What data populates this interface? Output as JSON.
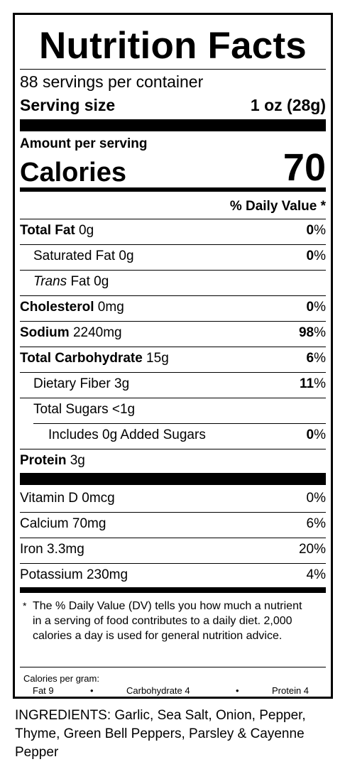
{
  "title": "Nutrition Facts",
  "servings_per_container": "88 servings per container",
  "serving_size": {
    "label": "Serving size",
    "value": "1 oz (28g)"
  },
  "amount_per_serving": "Amount per serving",
  "calories": {
    "label": "Calories",
    "value": "70"
  },
  "dv_header": "% Daily Value *",
  "nutrients": [
    {
      "bold": "Total Fat",
      "amount": " 0g",
      "pct": "0",
      "pct_unit": "%"
    },
    {
      "plain": "Saturated Fat 0g",
      "pct": "0",
      "pct_unit": "%"
    },
    {
      "italic": "Trans",
      "amount": " Fat 0g",
      "pct": "",
      "pct_unit": ""
    },
    {
      "bold": "Cholesterol",
      "amount": " 0mg",
      "pct": "0",
      "pct_unit": "%"
    },
    {
      "bold": "Sodium",
      "amount": " 2240mg",
      "pct": "98",
      "pct_unit": "%"
    },
    {
      "bold": "Total Carbohydrate",
      "amount": " 15g",
      "pct": "6",
      "pct_unit": "%"
    },
    {
      "plain": "Dietary Fiber 3g",
      "pct": "11",
      "pct_unit": "%"
    },
    {
      "plain": "Total Sugars <1g",
      "pct": "",
      "pct_unit": ""
    },
    {
      "plain": "Includes 0g Added Sugars",
      "pct": "0",
      "pct_unit": "%"
    },
    {
      "bold": "Protein",
      "amount": " 3g",
      "pct": "",
      "pct_unit": ""
    }
  ],
  "vitamins": [
    {
      "name": "Vitamin D 0mcg",
      "pct": "0%"
    },
    {
      "name": "Calcium 70mg",
      "pct": "6%"
    },
    {
      "name": "Iron 3.3mg",
      "pct": "20%"
    },
    {
      "name": "Potassium 230mg",
      "pct": "4%"
    }
  ],
  "footnote": {
    "star": "*",
    "text": "The % Daily Value (DV) tells you how much a nutrient in a serving of food contributes to a daily diet. 2,000 calories a day is used for general nutrition advice."
  },
  "calories_per_gram": {
    "heading": "Calories per gram:",
    "fat": "Fat 9",
    "bullet": "•",
    "carbohydrate": "Carbohydrate 4",
    "protein": "Protein 4"
  },
  "ingredients": "INGREDIENTS: Garlic, Sea Salt, Onion, Pepper, Thyme, Green Bell Peppers, Parsley & Cayenne Pepper"
}
